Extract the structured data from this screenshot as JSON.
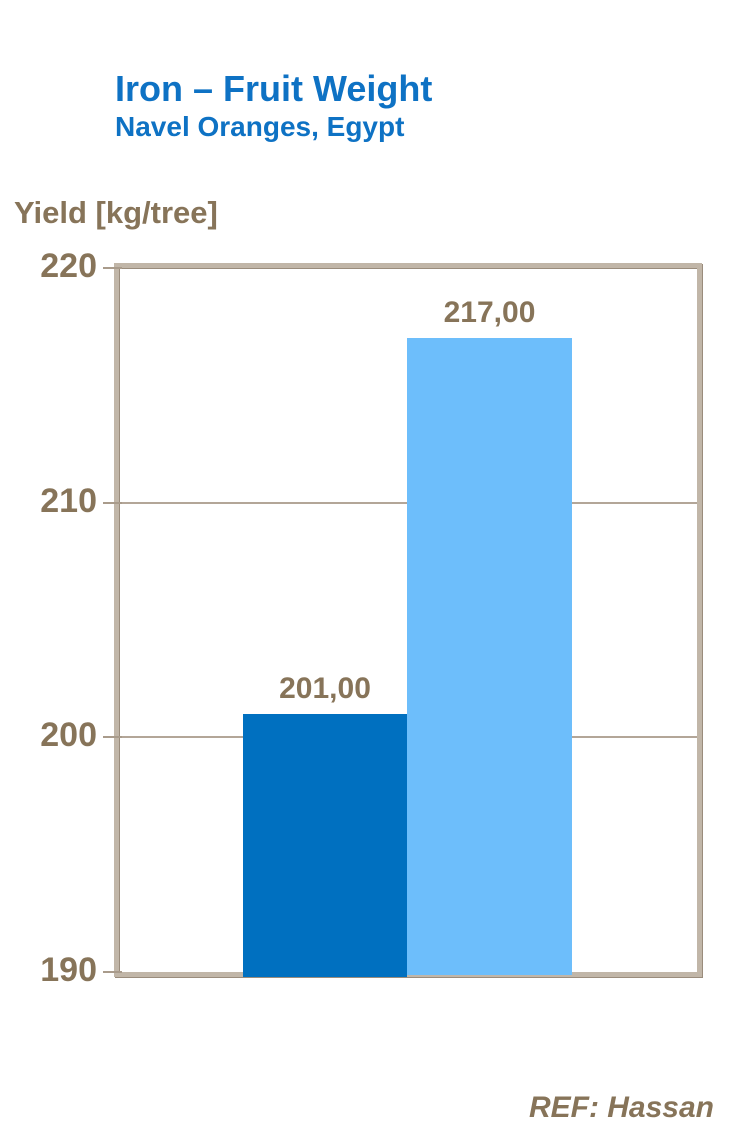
{
  "chart_data": {
    "type": "bar",
    "title": "Iron – Fruit Weight",
    "subtitle": "Navel Oranges, Egypt",
    "ylabel": "Yield [kg/tree]",
    "values": [
      201,
      217
    ],
    "data_labels": [
      "201,00",
      "217,00"
    ],
    "bar_colors": [
      "#0070C0",
      "#6DBEFB"
    ],
    "ylim": [
      190,
      220
    ],
    "yticks": [
      220,
      210,
      200,
      190
    ],
    "grid": true,
    "legend_position": "none",
    "reference": "REF: Hassan",
    "colors": {
      "title_text": "#0E72C4",
      "axis_text": "#877459",
      "frame": "#C1B6A8",
      "frame_shadow": "#9A8C7C",
      "gridline": "#B3A698",
      "background": "#FFFFFF"
    }
  }
}
